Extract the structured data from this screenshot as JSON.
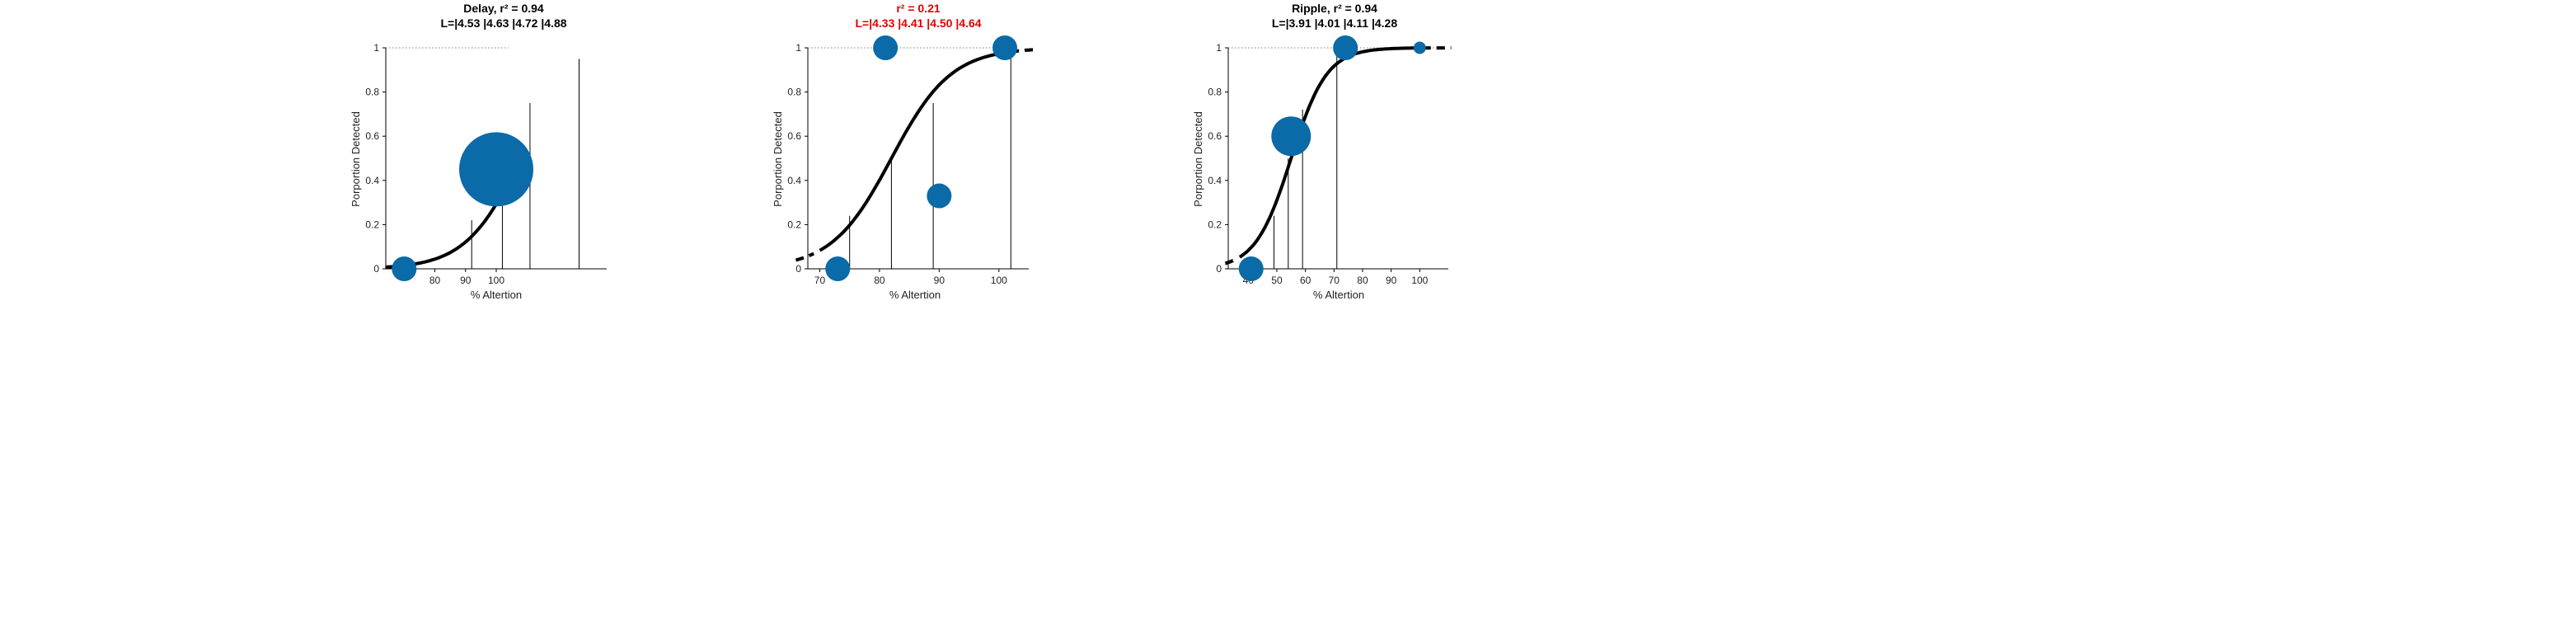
{
  "colors": {
    "marker": "#0b6aa8",
    "axis": "#000000",
    "curve": "#000000",
    "highlight": "#e00000",
    "refline": "#7f7f7f"
  },
  "chart_data": [
    {
      "type": "scatter",
      "title_line1": "Delay, r² = 0.94",
      "title_line2": "L=|4.53 |4.63 |4.72 |4.88",
      "title_color": "default",
      "xlabel": "% Altertion",
      "ylabel": "Porportion Detected",
      "xlim": [
        64,
        136
      ],
      "ylim": [
        0,
        1
      ],
      "xticks": [
        80,
        90,
        100
      ],
      "yticks": [
        0,
        0.2,
        0.4,
        0.6,
        0.8,
        1
      ],
      "ytick_labels": [
        "0",
        "0.2",
        "0.4",
        "0.6",
        "0.8",
        "1"
      ],
      "points": [
        {
          "x": 70,
          "y": 0.0,
          "size": 1
        },
        {
          "x": 100,
          "y": 0.45,
          "size": 3
        }
      ],
      "curve": {
        "type": "logistic",
        "mid": 108,
        "slope": 0.11,
        "x_range": [
          64,
          106
        ],
        "dash_end": [
          105,
          106.5
        ]
      },
      "vlines": [
        {
          "x": 92,
          "y": 0.22
        },
        {
          "x": 102,
          "y": 0.52
        },
        {
          "x": 111,
          "y": 0.75
        },
        {
          "x": 127,
          "y": 0.95
        }
      ],
      "refline_y": 1,
      "refline_x_range": [
        64,
        104
      ]
    },
    {
      "type": "scatter",
      "title_line1": "r² = 0.21",
      "title_line2": "L=|4.33 |4.41 |4.50 |4.64",
      "title_color": "highlight",
      "xlabel": "% Altertion",
      "ylabel": "Porportion Detected",
      "xlim": [
        68,
        105
      ],
      "ylim": [
        0,
        1
      ],
      "xticks": [
        70,
        80,
        90,
        100
      ],
      "yticks": [
        0,
        0.2,
        0.4,
        0.6,
        0.8,
        1
      ],
      "ytick_labels": [
        "0",
        "0.2",
        "0.4",
        "0.6",
        "0.8",
        "1"
      ],
      "points": [
        {
          "x": 73,
          "y": 0.0,
          "size": 1
        },
        {
          "x": 81,
          "y": 1.0,
          "size": 1
        },
        {
          "x": 90,
          "y": 0.33,
          "size": 1
        },
        {
          "x": 101,
          "y": 1.0,
          "size": 1
        }
      ],
      "curve": {
        "type": "logistic",
        "mid": 82,
        "slope": 0.2,
        "x_range": [
          70,
          101
        ],
        "dash_start": [
          66,
          69
        ],
        "dash_end": [
          102,
          106
        ]
      },
      "vlines": [
        {
          "x": 75,
          "y": 0.24
        },
        {
          "x": 82,
          "y": 0.5
        },
        {
          "x": 89,
          "y": 0.75
        },
        {
          "x": 102,
          "y": 1.0
        }
      ],
      "refline_y": 1,
      "refline_x_range": [
        68,
        103
      ]
    },
    {
      "type": "scatter",
      "title_line1": "Ripple, r² = 0.94",
      "title_line2": "L=|3.91 |4.01 |4.11 |4.28",
      "title_color": "default",
      "xlabel": "% Altertion",
      "ylabel": "Porportion Detected",
      "xlim": [
        33,
        110
      ],
      "ylim": [
        0,
        1
      ],
      "xticks": [
        40,
        50,
        60,
        70,
        80,
        90,
        100
      ],
      "yticks": [
        0,
        0.2,
        0.4,
        0.6,
        0.8,
        1
      ],
      "ytick_labels": [
        "0",
        "0.2",
        "0.4",
        "0.6",
        "0.8",
        "1"
      ],
      "points": [
        {
          "x": 41,
          "y": 0.0,
          "size": 1
        },
        {
          "x": 55,
          "y": 0.6,
          "size": 1.6
        },
        {
          "x": 74,
          "y": 1.0,
          "size": 1
        },
        {
          "x": 100,
          "y": 1.0,
          "size": 0.5
        }
      ],
      "curve": {
        "type": "logistic",
        "mid": 55,
        "slope": 0.16,
        "x_range": [
          37,
          100
        ],
        "dash_start": [
          32,
          36
        ],
        "dash_end": [
          101,
          111
        ]
      },
      "vlines": [
        {
          "x": 49,
          "y": 0.24
        },
        {
          "x": 54,
          "y": 0.5
        },
        {
          "x": 59,
          "y": 0.72
        },
        {
          "x": 71,
          "y": 1.0
        }
      ],
      "refline_y": 1,
      "refline_x_range": [
        33,
        108
      ]
    }
  ]
}
